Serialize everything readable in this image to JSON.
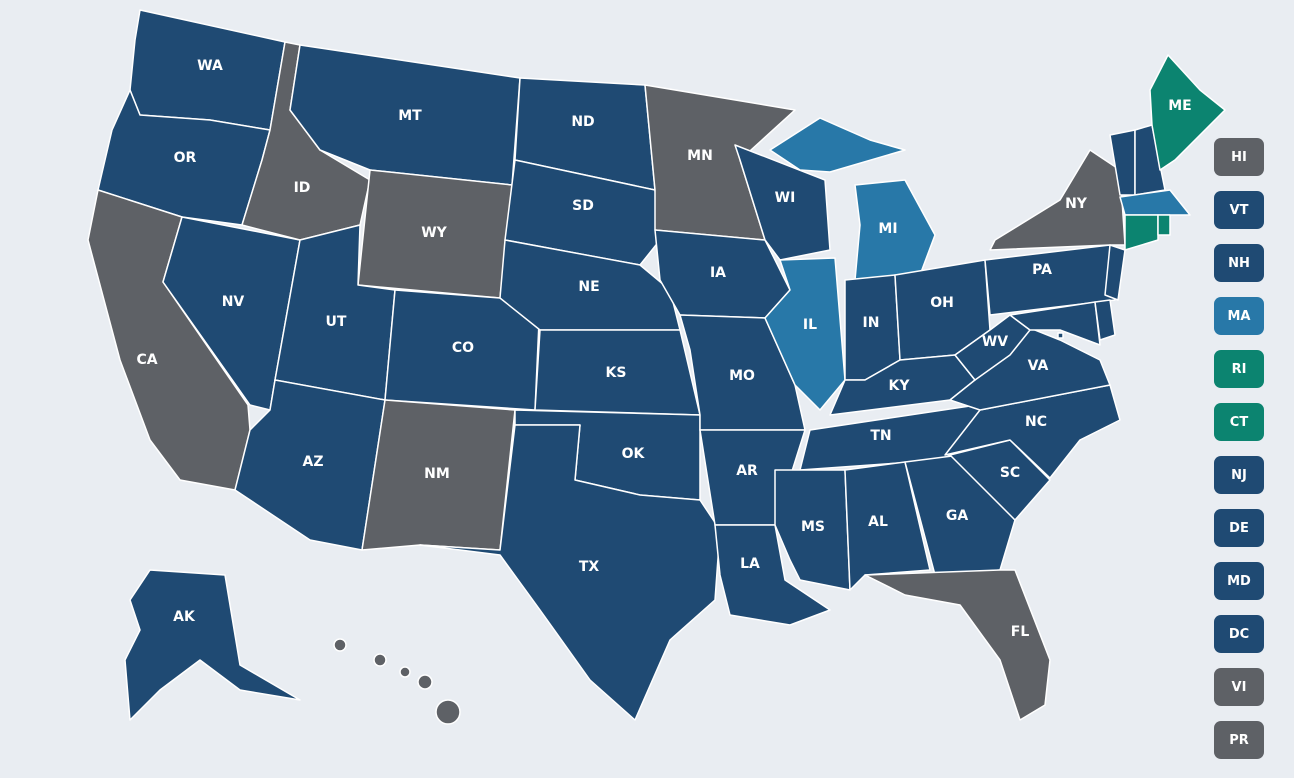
{
  "colors": {
    "dark_blue": "#1f4a73",
    "gray": "#5e6166",
    "light_blue": "#2878a8",
    "teal": "#0c8470",
    "background": "#e9edf2"
  },
  "states": [
    {
      "abbr": "WA",
      "color": "dark_blue"
    },
    {
      "abbr": "OR",
      "color": "dark_blue"
    },
    {
      "abbr": "CA",
      "color": "gray"
    },
    {
      "abbr": "NV",
      "color": "dark_blue"
    },
    {
      "abbr": "ID",
      "color": "gray"
    },
    {
      "abbr": "MT",
      "color": "dark_blue"
    },
    {
      "abbr": "WY",
      "color": "gray"
    },
    {
      "abbr": "UT",
      "color": "dark_blue"
    },
    {
      "abbr": "AZ",
      "color": "dark_blue"
    },
    {
      "abbr": "CO",
      "color": "dark_blue"
    },
    {
      "abbr": "NM",
      "color": "gray"
    },
    {
      "abbr": "ND",
      "color": "dark_blue"
    },
    {
      "abbr": "SD",
      "color": "dark_blue"
    },
    {
      "abbr": "NE",
      "color": "dark_blue"
    },
    {
      "abbr": "KS",
      "color": "dark_blue"
    },
    {
      "abbr": "OK",
      "color": "dark_blue"
    },
    {
      "abbr": "TX",
      "color": "dark_blue"
    },
    {
      "abbr": "MN",
      "color": "gray"
    },
    {
      "abbr": "IA",
      "color": "dark_blue"
    },
    {
      "abbr": "MO",
      "color": "dark_blue"
    },
    {
      "abbr": "AR",
      "color": "dark_blue"
    },
    {
      "abbr": "LA",
      "color": "dark_blue"
    },
    {
      "abbr": "WI",
      "color": "dark_blue"
    },
    {
      "abbr": "IL",
      "color": "light_blue"
    },
    {
      "abbr": "MI",
      "color": "light_blue"
    },
    {
      "abbr": "IN",
      "color": "dark_blue"
    },
    {
      "abbr": "OH",
      "color": "dark_blue"
    },
    {
      "abbr": "KY",
      "color": "dark_blue"
    },
    {
      "abbr": "TN",
      "color": "dark_blue"
    },
    {
      "abbr": "MS",
      "color": "dark_blue"
    },
    {
      "abbr": "AL",
      "color": "dark_blue"
    },
    {
      "abbr": "GA",
      "color": "dark_blue"
    },
    {
      "abbr": "FL",
      "color": "gray"
    },
    {
      "abbr": "SC",
      "color": "dark_blue"
    },
    {
      "abbr": "NC",
      "color": "dark_blue"
    },
    {
      "abbr": "VA",
      "color": "dark_blue"
    },
    {
      "abbr": "WV",
      "color": "dark_blue"
    },
    {
      "abbr": "PA",
      "color": "dark_blue"
    },
    {
      "abbr": "NY",
      "color": "gray"
    },
    {
      "abbr": "NJ",
      "color": "dark_blue"
    },
    {
      "abbr": "DE",
      "color": "dark_blue"
    },
    {
      "abbr": "MD",
      "color": "dark_blue"
    },
    {
      "abbr": "DC",
      "color": "dark_blue"
    },
    {
      "abbr": "VT",
      "color": "dark_blue"
    },
    {
      "abbr": "NH",
      "color": "dark_blue"
    },
    {
      "abbr": "ME",
      "color": "teal"
    },
    {
      "abbr": "MA",
      "color": "light_blue"
    },
    {
      "abbr": "CT",
      "color": "teal"
    },
    {
      "abbr": "RI",
      "color": "teal"
    },
    {
      "abbr": "AK",
      "color": "dark_blue"
    },
    {
      "abbr": "HI",
      "color": "gray"
    }
  ],
  "legend_buttons": [
    {
      "label": "HI",
      "color": "gray"
    },
    {
      "label": "VT",
      "color": "dark_blue"
    },
    {
      "label": "NH",
      "color": "dark_blue"
    },
    {
      "label": "MA",
      "color": "light_blue"
    },
    {
      "label": "RI",
      "color": "teal"
    },
    {
      "label": "CT",
      "color": "teal"
    },
    {
      "label": "NJ",
      "color": "dark_blue"
    },
    {
      "label": "DE",
      "color": "dark_blue"
    },
    {
      "label": "MD",
      "color": "dark_blue"
    },
    {
      "label": "DC",
      "color": "dark_blue"
    },
    {
      "label": "VI",
      "color": "gray"
    },
    {
      "label": "PR",
      "color": "gray"
    }
  ]
}
